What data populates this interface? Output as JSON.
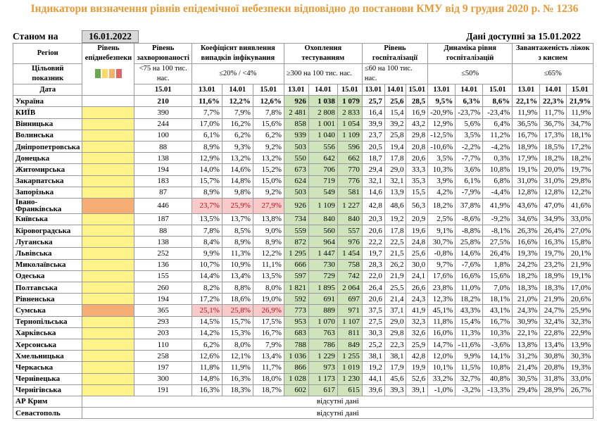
{
  "title": "Індикатори визначення рівнів епідемічної небезпеки відповідно до постанови КМУ від 9 грудня 2020 р. № 1236",
  "as_of_label": "Станом на",
  "as_of_date": "16.01.2022",
  "data_available": "Дані доступні за 15.01.2022",
  "headers": {
    "region": "Регіон",
    "target": "Цільовий показник",
    "date": "Дата",
    "level": "Рівень епіднебезпеки",
    "morbidity": "Рівень захворюваності",
    "morbidity_target": "<75 на 100 тис. нас.",
    "detection": "Коефіцієнт виявлення випадків інфікування",
    "detection_target": "≤20% / <4%",
    "testing": "Охоплення тестуванням",
    "testing_target": "≥300 на 100 тис. нас.",
    "hosp": "Рівень госпіталізації",
    "hosp_target": "≤60 на 100 тис. нас.",
    "dyn": "Динаміка рівня госпіталізацій",
    "dyn_target": "≤50%",
    "oxygen": "Завантаженість ліжок з киснем",
    "oxygen_target": "≤65%",
    "dates": {
      "d13": "13.01",
      "d14": "14.01",
      "d15": "15.01"
    }
  },
  "legend_colors": [
    "#6aa84f",
    "#ffd966",
    "#f6b26b",
    "#e06666"
  ],
  "rows": [
    {
      "region": "Україна",
      "level": "",
      "morb": "210",
      "det": [
        "11,6%",
        "12,2%",
        "12,6%"
      ],
      "test": [
        "926",
        "1 038",
        "1 079"
      ],
      "hosp": [
        "25,7",
        "25,6",
        "28,5"
      ],
      "dyn": [
        "9,5%",
        "6,3%",
        "8,6%"
      ],
      "oxy": [
        "22,1%",
        "22,3%",
        "21,9%"
      ]
    },
    {
      "region": "КИЇВ",
      "level": "yellow",
      "morb": "390",
      "det": [
        "7,7%",
        "7,9%",
        "7,8%"
      ],
      "test": [
        "2 481",
        "2 808",
        "2 833"
      ],
      "hosp": [
        "16,4",
        "15,4",
        "16,9"
      ],
      "dyn": [
        "-20,9%",
        "-23,7%",
        "-23,4%"
      ],
      "oxy": [
        "11,9%",
        "11,7%",
        "11,9%"
      ]
    },
    {
      "region": "Вінницька",
      "level": "yellow",
      "morb": "244",
      "det": [
        "17,0%",
        "16,2%",
        "15,6%"
      ],
      "test": [
        "858",
        "1 001",
        "1 054"
      ],
      "hosp": [
        "39,9",
        "39,2",
        "43,2"
      ],
      "dyn": [
        "12,9%",
        "5,6%",
        "6,4%"
      ],
      "oxy": [
        "36,5%",
        "36,7%",
        "34,7%"
      ]
    },
    {
      "region": "Волинська",
      "level": "yellow",
      "morb": "100",
      "det": [
        "6,1%",
        "6,2%",
        "6,2%"
      ],
      "test": [
        "939",
        "1 040",
        "1 109"
      ],
      "hosp": [
        "23,7",
        "25,8",
        "29,8"
      ],
      "dyn": [
        "-12,5%",
        "3,5%",
        "11,2%"
      ],
      "oxy": [
        "16,7%",
        "17,3%",
        "18,1%"
      ]
    },
    {
      "region": "Дніпропетровська",
      "level": "yellow",
      "morb": "88",
      "det": [
        "8,9%",
        "9,3%",
        "9,2%"
      ],
      "test": [
        "503",
        "556",
        "596"
      ],
      "hosp": [
        "20,5",
        "19,4",
        "20,8"
      ],
      "dyn": [
        "-10,6%",
        "-2,2%",
        "-4,2%"
      ],
      "oxy": [
        "18,9%",
        "18,5%",
        "17,2%"
      ]
    },
    {
      "region": "Донецька",
      "level": "yellow",
      "morb": "138",
      "det": [
        "12,9%",
        "13,2%",
        "13,2%"
      ],
      "test": [
        "550",
        "642",
        "662"
      ],
      "hosp": [
        "18,7",
        "17,8",
        "20,6"
      ],
      "dyn": [
        "3,5%",
        "-7,7%",
        "0,3%"
      ],
      "oxy": [
        "17,9%",
        "18,2%",
        "18,2%"
      ]
    },
    {
      "region": "Житомирська",
      "level": "yellow",
      "morb": "194",
      "det": [
        "14,0%",
        "14,6%",
        "15,2%"
      ],
      "test": [
        "673",
        "706",
        "770"
      ],
      "hosp": [
        "29,4",
        "29,0",
        "33,3"
      ],
      "dyn": [
        "10,3%",
        "3,6%",
        "10,8%"
      ],
      "oxy": [
        "19,1%",
        "20,0%",
        "19,7%"
      ]
    },
    {
      "region": "Закарпатська",
      "level": "yellow",
      "morb": "183",
      "det": [
        "15,7%",
        "14,8%",
        "15,0%"
      ],
      "test": [
        "624",
        "719",
        "776"
      ],
      "hosp": [
        "32,1",
        "32,1",
        "35,3"
      ],
      "dyn": [
        "3,9%",
        "6,1%",
        "6,8%"
      ],
      "oxy": [
        "31,0%",
        "31,0%",
        "29,8%"
      ]
    },
    {
      "region": "Запорізька",
      "level": "yellow",
      "morb": "87",
      "det": [
        "8,9%",
        "9,8%",
        "9,2%"
      ],
      "test": [
        "503",
        "549",
        "581"
      ],
      "hosp": [
        "14,6",
        "13,9",
        "15,5"
      ],
      "dyn": [
        "4,2%",
        "-7,9%",
        "-4,4%"
      ],
      "oxy": [
        "12,8%",
        "12,8%",
        "12,2%"
      ]
    },
    {
      "region": "Івано-Франківська",
      "level": "orange",
      "morb": "446",
      "det": [
        "23,7%",
        "25,9%",
        "27,9%"
      ],
      "det_alert": true,
      "test": [
        "926",
        "1 109",
        "1 227"
      ],
      "hosp": [
        "42,8",
        "48,6",
        "56,3"
      ],
      "dyn": [
        "18,2%",
        "37,8%",
        "41,9%"
      ],
      "oxy": [
        "43,6%",
        "47,0%",
        "41,6%"
      ]
    },
    {
      "region": "Київська",
      "level": "yellow",
      "morb": "187",
      "det": [
        "13,5%",
        "13,7%",
        "13,8%"
      ],
      "test": [
        "734",
        "840",
        "840"
      ],
      "hosp": [
        "20,3",
        "19,2",
        "20,9"
      ],
      "dyn": [
        "2,5%",
        "-8,6%",
        "-9,2%"
      ],
      "oxy": [
        "34,6%",
        "34,9%",
        "33,0%"
      ]
    },
    {
      "region": "Кіровоградська",
      "level": "yellow",
      "morb": "88",
      "det": [
        "7,8%",
        "8,5%",
        "9,0%"
      ],
      "test": [
        "559",
        "560",
        "557"
      ],
      "hosp": [
        "20,6",
        "17,8",
        "19,6"
      ],
      "dyn": [
        "9,1%",
        "-8,8%",
        "-8,1%"
      ],
      "oxy": [
        "26,3%",
        "26,4%",
        "27,0%"
      ]
    },
    {
      "region": "Луганська",
      "level": "yellow",
      "morb": "138",
      "det": [
        "8,4%",
        "8,9%",
        "8,9%"
      ],
      "test": [
        "872",
        "964",
        "976"
      ],
      "hosp": [
        "22,2",
        "22,5",
        "24,8"
      ],
      "dyn": [
        "30,7%",
        "25,8%",
        "27,5%"
      ],
      "oxy": [
        "16,6%",
        "16,3%",
        "15,8%"
      ]
    },
    {
      "region": "Львівська",
      "level": "yellow",
      "morb": "252",
      "det": [
        "9,9%",
        "11,3%",
        "12,2%"
      ],
      "test": [
        "1 295",
        "1 447",
        "1 454"
      ],
      "hosp": [
        "19,7",
        "21,5",
        "25,6"
      ],
      "dyn": [
        "-0,8%",
        "14,6%",
        "26,4%"
      ],
      "oxy": [
        "19,3%",
        "19,7%",
        "20,1%"
      ]
    },
    {
      "region": "Миколаївська",
      "level": "yellow",
      "morb": "136",
      "det": [
        "10,7%",
        "10,9%",
        "11,1%"
      ],
      "test": [
        "666",
        "730",
        "758"
      ],
      "hosp": [
        "28,3",
        "26,2",
        "30,0"
      ],
      "dyn": [
        "9,7%",
        "-7,6%",
        "1,8%"
      ],
      "oxy": [
        "24,2%",
        "23,2%",
        "21,9%"
      ]
    },
    {
      "region": "Одеська",
      "level": "yellow",
      "morb": "155",
      "det": [
        "14,4%",
        "13,4%",
        "13,5%"
      ],
      "test": [
        "597",
        "729",
        "742"
      ],
      "hosp": [
        "22,0",
        "21,9",
        "24,1"
      ],
      "dyn": [
        "17,6%",
        "16,6%",
        "15,6%"
      ],
      "oxy": [
        "18,2%",
        "18,9%",
        "19,1%"
      ]
    },
    {
      "region": "Полтавська",
      "level": "yellow",
      "morb": "260",
      "det": [
        "8,2%",
        "8,8%",
        "8,0%"
      ],
      "test": [
        "1 821",
        "1 895",
        "2 064"
      ],
      "hosp": [
        "26,4",
        "25,5",
        "26,6"
      ],
      "dyn": [
        "23,8%",
        "11,0%",
        "7,0%"
      ],
      "oxy": [
        "18,3%",
        "18,3%",
        "17,0%"
      ]
    },
    {
      "region": "Рівненська",
      "level": "yellow",
      "morb": "194",
      "det": [
        "17,2%",
        "18,6%",
        "19,0%"
      ],
      "test": [
        "592",
        "691",
        "697"
      ],
      "hosp": [
        "20,6",
        "21,4",
        "24,3"
      ],
      "dyn": [
        "12,3%",
        "18,2%",
        "18,1%"
      ],
      "oxy": [
        "21,0%",
        "21,9%",
        "20,6%"
      ]
    },
    {
      "region": "Сумська",
      "level": "orange",
      "morb": "365",
      "det": [
        "25,1%",
        "25,8%",
        "26,9%"
      ],
      "det_alert": true,
      "test": [
        "773",
        "889",
        "971"
      ],
      "hosp": [
        "37,5",
        "37,1",
        "41,9"
      ],
      "dyn": [
        "45,1%",
        "43,3%",
        "43,1%"
      ],
      "oxy": [
        "24,3%",
        "24,7%",
        "25,9%"
      ]
    },
    {
      "region": "Тернопільська",
      "level": "yellow",
      "morb": "293",
      "det": [
        "14,5%",
        "15,7%",
        "17,5%"
      ],
      "test": [
        "953",
        "1 070",
        "1 107"
      ],
      "hosp": [
        "27,5",
        "29,0",
        "32,3"
      ],
      "dyn": [
        "11,8%",
        "15,4%",
        "16,7%"
      ],
      "oxy": [
        "30,9%",
        "32,4%",
        "32,3%"
      ]
    },
    {
      "region": "Харківська",
      "level": "yellow",
      "morb": "203",
      "det": [
        "14,2%",
        "15,3%",
        "16,7%"
      ],
      "test": [
        "683",
        "763",
        "811"
      ],
      "hosp": [
        "30,3",
        "29,8",
        "32,6"
      ],
      "dyn": [
        "16,0%",
        "11,3%",
        "10,3%"
      ],
      "oxy": [
        "22,1%",
        "22,8%",
        "22,9%"
      ]
    },
    {
      "region": "Херсонська",
      "level": "yellow",
      "morb": "110",
      "det": [
        "6,2%",
        "8,0%",
        "7,9%"
      ],
      "test": [
        "788",
        "786",
        "849"
      ],
      "hosp": [
        "25,2",
        "22,3",
        "25,9"
      ],
      "dyn": [
        "14,7%",
        "-11,6%",
        "-3,6%"
      ],
      "oxy": [
        "13,8%",
        "13,4%",
        "13,9%"
      ]
    },
    {
      "region": "Хмельницька",
      "level": "yellow",
      "morb": "258",
      "det": [
        "12,6%",
        "12,1%",
        "13,4%"
      ],
      "test": [
        "1 036",
        "1 229",
        "1 255"
      ],
      "hosp": [
        "38,1",
        "38,1",
        "42,8"
      ],
      "dyn": [
        "12,0%",
        "9,9%",
        "14,1%"
      ],
      "oxy": [
        "31,2%",
        "30,8%",
        "30,3%"
      ]
    },
    {
      "region": "Черкаська",
      "level": "yellow",
      "morb": "197",
      "det": [
        "11,8%",
        "11,9%",
        "11,7%"
      ],
      "test": [
        "866",
        "973",
        "1 019"
      ],
      "hosp": [
        "19,2",
        "17,9",
        "19,9"
      ],
      "dyn": [
        "10,1%",
        "11,5%",
        "10,8%"
      ],
      "oxy": [
        "21,4%",
        "20,8%",
        "19,3%"
      ]
    },
    {
      "region": "Чернівецька",
      "level": "yellow",
      "morb": "300",
      "det": [
        "14,8%",
        "16,3%",
        "18,0%"
      ],
      "test": [
        "1 028",
        "1 173",
        "1 230"
      ],
      "hosp": [
        "44,1",
        "45,6",
        "52,6"
      ],
      "dyn": [
        "33,2%",
        "32,7%",
        "40,8%"
      ],
      "oxy": [
        "30,5%",
        "31,8%",
        "33,0%"
      ]
    },
    {
      "region": "Чернігівська",
      "level": "yellow",
      "morb": "191",
      "det": [
        "16,3%",
        "18,3%",
        "18,7%"
      ],
      "test": [
        "602",
        "617",
        "615"
      ],
      "hosp": [
        "39,6",
        "39,3",
        "39,1"
      ],
      "dyn": [
        "-1,0%",
        "-3,2%",
        "-13,3%"
      ],
      "oxy": [
        "29,4%",
        "28,9%",
        "26,7%"
      ]
    }
  ],
  "missing_rows": [
    {
      "region": "АР Крим",
      "text": "відсутні дані"
    },
    {
      "region": "Севастополь",
      "text": "відсутні дані"
    }
  ]
}
